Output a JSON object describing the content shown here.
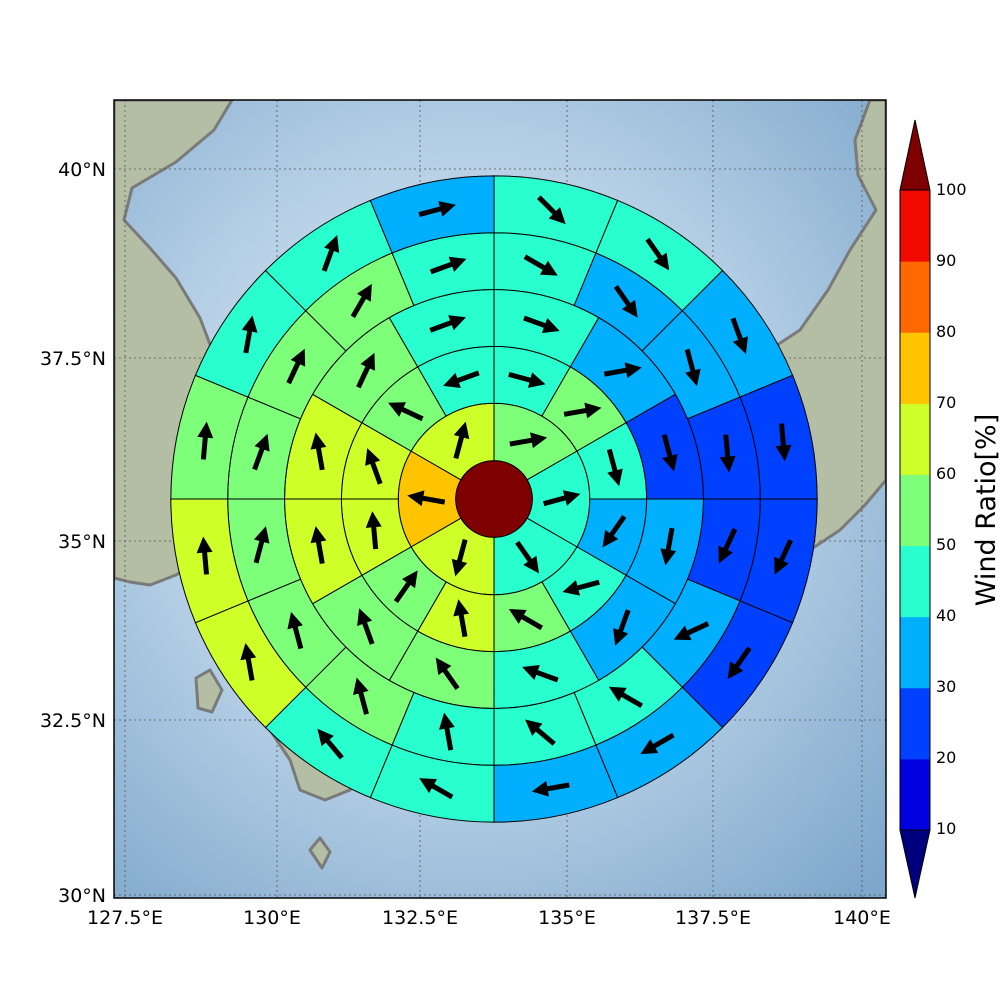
{
  "chart_data": {
    "type": "polar-sector-map",
    "x_ticks": [
      "127.5°E",
      "130°E",
      "132.5°E",
      "135°E",
      "137.5°E",
      "140°E"
    ],
    "y_ticks": [
      "30°N",
      "32.5°N",
      "35°N",
      "37.5°N",
      "40°N"
    ],
    "lon_range": [
      127.5,
      140.4
    ],
    "lat_range": [
      29.9,
      40.9
    ],
    "grid": true,
    "center": {
      "lon": 133.85,
      "lat": 35.4,
      "wind_ratio": 100
    },
    "ring_radii_deg": [
      0.64,
      1.6,
      2.55,
      3.5,
      4.45,
      5.4
    ],
    "sectors_per_ring": [
      6,
      12,
      12,
      16,
      16
    ],
    "ring_values": [
      [
        55,
        45,
        40,
        60,
        70,
        60
      ],
      [
        45,
        50,
        40,
        35,
        45,
        50,
        60,
        55,
        60,
        60,
        50,
        45
      ],
      [
        45,
        35,
        25,
        35,
        35,
        45,
        55,
        55,
        60,
        60,
        55,
        45
      ],
      [
        45,
        35,
        30,
        20,
        25,
        35,
        40,
        45,
        45,
        50,
        55,
        55,
        55,
        55,
        50,
        45
      ],
      [
        40,
        40,
        30,
        20,
        25,
        20,
        30,
        35,
        40,
        45,
        60,
        60,
        55,
        45,
        40,
        35
      ]
    ],
    "ring_dirs": [
      [
        80,
        75,
        145,
        195,
        280,
        15
      ],
      [
        105,
        80,
        165,
        215,
        255,
        300,
        350,
        35,
        355,
        340,
        295,
        250
      ],
      [
        110,
        80,
        165,
        190,
        200,
        290,
        325,
        340,
        350,
        350,
        25,
        70
      ],
      [
        120,
        145,
        165,
        175,
        205,
        245,
        300,
        310,
        350,
        345,
        345,
        15,
        20,
        25,
        30,
        70
      ],
      [
        135,
        145,
        160,
        175,
        205,
        215,
        240,
        260,
        300,
        320,
        350,
        355,
        5,
        10,
        20,
        75
      ]
    ],
    "colorbar": {
      "label": "Wind Ratio[%]",
      "ticks": [
        "10",
        "20",
        "30",
        "40",
        "50",
        "60",
        "70",
        "80",
        "90",
        "100"
      ],
      "bounds": [
        10,
        20,
        30,
        40,
        50,
        60,
        70,
        80,
        90,
        100
      ],
      "under_color": "#00007f",
      "over_color": "#7f0000",
      "colors": [
        "#0000e0",
        "#0040ff",
        "#00b0ff",
        "#29ffce",
        "#7dff7a",
        "#ceff29",
        "#ffc400",
        "#ff6800",
        "#f10800"
      ]
    },
    "colors": {
      "sea": "#9cbfdc",
      "land": "#a9bfa6",
      "coast": "#7a7a7a"
    }
  }
}
